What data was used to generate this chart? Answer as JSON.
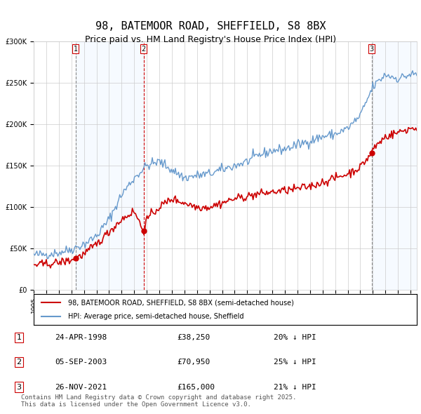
{
  "title": "98, BATEMOOR ROAD, SHEFFIELD, S8 8BX",
  "subtitle": "Price paid vs. HM Land Registry's House Price Index (HPI)",
  "legend_property": "98, BATEMOOR ROAD, SHEFFIELD, S8 8BX (semi-detached house)",
  "legend_hpi": "HPI: Average price, semi-detached house, Sheffield",
  "footer": "Contains HM Land Registry data © Crown copyright and database right 2025.\nThis data is licensed under the Open Government Licence v3.0.",
  "sale1_date": "24-APR-1998",
  "sale1_price": "£38,250",
  "sale1_hpi": "20% ↓ HPI",
  "sale2_date": "05-SEP-2003",
  "sale2_price": "£70,950",
  "sale2_hpi": "25% ↓ HPI",
  "sale3_date": "26-NOV-2021",
  "sale3_price": "£165,000",
  "sale3_hpi": "21% ↓ HPI",
  "red_color": "#cc0000",
  "blue_color": "#6699cc",
  "shading_color": "#ddeeff",
  "vline1_color": "#888888",
  "vline2_color": "#cc0000",
  "vline3_color": "#888888",
  "background_color": "#ffffff",
  "grid_color": "#cccccc",
  "ylim": [
    0,
    300000
  ],
  "xlabel": "",
  "ylabel": "",
  "x_start_year": 1995.0,
  "x_end_year": 2025.5
}
